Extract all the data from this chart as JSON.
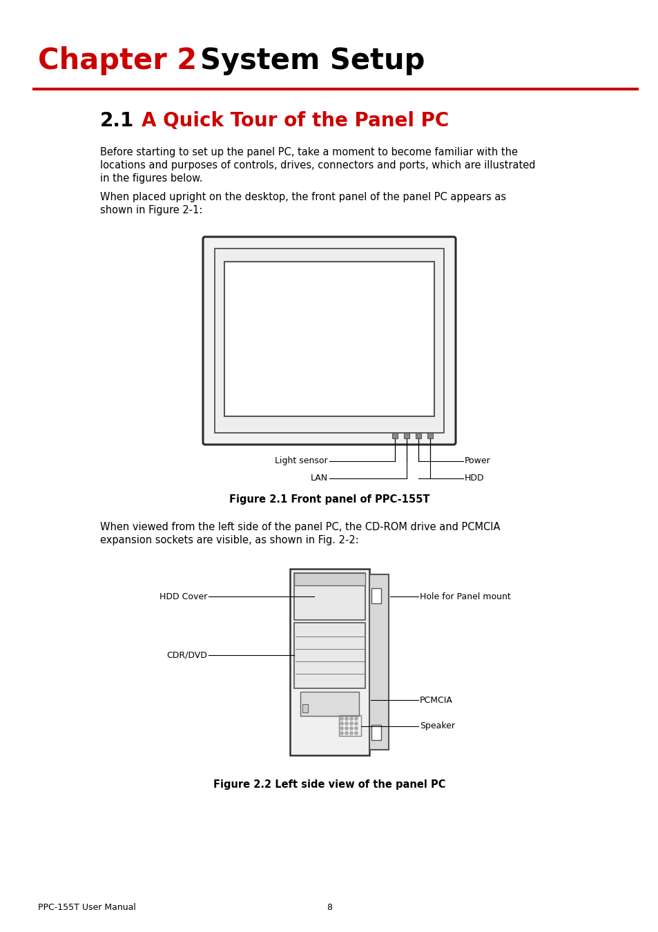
{
  "bg_color": "#ffffff",
  "chapter_label": "Chapter 2",
  "chapter_label_color": "#cc0000",
  "chapter_title": "System Setup",
  "chapter_title_color": "#000000",
  "section_number": "2.1",
  "section_title": "A Quick Tour of the Panel PC",
  "section_title_color": "#cc0000",
  "para1_lines": [
    "Before starting to set up the panel PC, take a moment to become familiar with the",
    "locations and purposes of controls, drives, connectors and ports, which are illustrated",
    "in the figures below."
  ],
  "para2_lines": [
    "When placed upright on the desktop, the front panel of the panel PC appears as",
    "shown in Figure 2-1:"
  ],
  "para3_lines": [
    "When viewed from the left side of the panel PC, the CD-ROM drive and PCMCIA",
    "expansion sockets are visible, as shown in Fig. 2-2:"
  ],
  "fig1_caption": "Figure 2.1 Front panel of PPC-155T",
  "fig2_caption": "Figure 2.2 Left side view of the panel PC",
  "footer_left": "PPC-155T User Manual",
  "footer_center": "8",
  "text_color": "#000000",
  "red_color": "#cc0000",
  "body_font_size": 10.5,
  "chapter_font_size": 30,
  "section_font_size": 20,
  "caption_font_size": 10.5,
  "label_font_size": 9,
  "footer_font_size": 9
}
